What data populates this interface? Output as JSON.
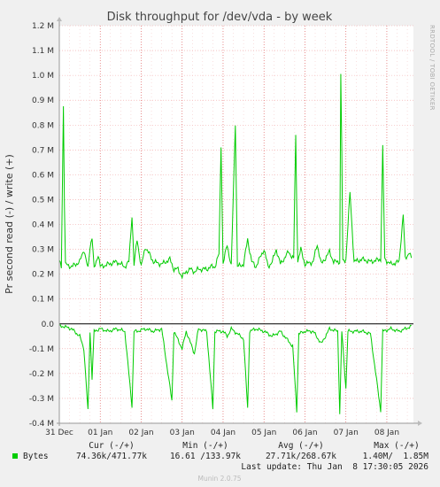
{
  "chart_data": {
    "type": "line",
    "title": "Disk throughput for /dev/vda - by week",
    "ylabel": "Pr second read (-) / write (+)",
    "side_label": "RRDTOOL / TOBI OETIKER",
    "ylim": [
      -0.4,
      1.2
    ],
    "y_unit": "M",
    "y_ticks": [
      "1.2 M",
      "1.1 M",
      "1.0 M",
      "0.9 M",
      "0.8 M",
      "0.7 M",
      "0.6 M",
      "0.5 M",
      "0.4 M",
      "0.3 M",
      "0.2 M",
      "0.1 M",
      "0.0",
      "-0.1 M",
      "-0.2 M",
      "-0.3 M",
      "-0.4 M"
    ],
    "x_ticks": [
      "31 Dec",
      "01 Jan",
      "02 Jan",
      "03 Jan",
      "04 Jan",
      "05 Jan",
      "06 Jan",
      "07 Jan",
      "08 Jan"
    ],
    "x_range_days": [
      0,
      8.65
    ],
    "grid": true,
    "series": [
      {
        "name": "Bytes",
        "color": "#00cc00",
        "write_points": [
          [
            0.0,
            0.25
          ],
          [
            0.05,
            0.23
          ],
          [
            0.1,
            0.88
          ],
          [
            0.14,
            0.24
          ],
          [
            0.3,
            0.23
          ],
          [
            0.5,
            0.25
          ],
          [
            0.6,
            0.3
          ],
          [
            0.7,
            0.22
          ],
          [
            0.75,
            0.31
          ],
          [
            0.8,
            0.35
          ],
          [
            0.85,
            0.22
          ],
          [
            0.95,
            0.28
          ],
          [
            1.0,
            0.23
          ],
          [
            1.2,
            0.24
          ],
          [
            1.4,
            0.25
          ],
          [
            1.6,
            0.23
          ],
          [
            1.7,
            0.25
          ],
          [
            1.78,
            0.45
          ],
          [
            1.82,
            0.23
          ],
          [
            1.9,
            0.34
          ],
          [
            2.0,
            0.23
          ],
          [
            2.1,
            0.31
          ],
          [
            2.3,
            0.25
          ],
          [
            2.5,
            0.24
          ],
          [
            2.7,
            0.26
          ],
          [
            2.8,
            0.22
          ],
          [
            2.9,
            0.22
          ],
          [
            3.0,
            0.19
          ],
          [
            3.1,
            0.21
          ],
          [
            3.2,
            0.22
          ],
          [
            3.3,
            0.21
          ],
          [
            3.4,
            0.22
          ],
          [
            3.5,
            0.22
          ],
          [
            3.6,
            0.22
          ],
          [
            3.7,
            0.23
          ],
          [
            3.8,
            0.23
          ],
          [
            3.9,
            0.28
          ],
          [
            3.95,
            0.72
          ],
          [
            4.0,
            0.24
          ],
          [
            4.1,
            0.32
          ],
          [
            4.2,
            0.23
          ],
          [
            4.3,
            0.81
          ],
          [
            4.35,
            0.23
          ],
          [
            4.5,
            0.24
          ],
          [
            4.6,
            0.34
          ],
          [
            4.7,
            0.25
          ],
          [
            4.8,
            0.23
          ],
          [
            5.0,
            0.3
          ],
          [
            5.1,
            0.23
          ],
          [
            5.2,
            0.25
          ],
          [
            5.3,
            0.3
          ],
          [
            5.4,
            0.24
          ],
          [
            5.6,
            0.29
          ],
          [
            5.73,
            0.26
          ],
          [
            5.77,
            0.81
          ],
          [
            5.82,
            0.25
          ],
          [
            5.9,
            0.3
          ],
          [
            6.0,
            0.24
          ],
          [
            6.2,
            0.25
          ],
          [
            6.3,
            0.32
          ],
          [
            6.4,
            0.24
          ],
          [
            6.6,
            0.29
          ],
          [
            6.7,
            0.25
          ],
          [
            6.85,
            0.25
          ],
          [
            6.88,
            1.15
          ],
          [
            6.92,
            0.25
          ],
          [
            7.0,
            0.26
          ],
          [
            7.1,
            0.53
          ],
          [
            7.2,
            0.25
          ],
          [
            7.4,
            0.26
          ],
          [
            7.6,
            0.25
          ],
          [
            7.85,
            0.26
          ],
          [
            7.9,
            0.71
          ],
          [
            7.95,
            0.26
          ],
          [
            8.1,
            0.24
          ],
          [
            8.3,
            0.25
          ],
          [
            8.4,
            0.44
          ],
          [
            8.45,
            0.26
          ],
          [
            8.55,
            0.29
          ],
          [
            8.6,
            0.26
          ]
        ],
        "read_points": [
          [
            0.0,
            -0.01
          ],
          [
            0.1,
            -0.01
          ],
          [
            0.3,
            -0.02
          ],
          [
            0.5,
            -0.05
          ],
          [
            0.6,
            -0.1
          ],
          [
            0.7,
            -0.35
          ],
          [
            0.75,
            -0.03
          ],
          [
            0.8,
            -0.22
          ],
          [
            0.85,
            -0.03
          ],
          [
            1.0,
            -0.02
          ],
          [
            1.2,
            -0.03
          ],
          [
            1.4,
            -0.02
          ],
          [
            1.6,
            -0.03
          ],
          [
            1.78,
            -0.34
          ],
          [
            1.82,
            -0.03
          ],
          [
            1.9,
            -0.03
          ],
          [
            2.1,
            -0.02
          ],
          [
            2.3,
            -0.03
          ],
          [
            2.5,
            -0.02
          ],
          [
            2.75,
            -0.31
          ],
          [
            2.8,
            -0.03
          ],
          [
            3.0,
            -0.1
          ],
          [
            3.1,
            -0.03
          ],
          [
            3.3,
            -0.12
          ],
          [
            3.4,
            -0.02
          ],
          [
            3.6,
            -0.03
          ],
          [
            3.75,
            -0.34
          ],
          [
            3.8,
            -0.03
          ],
          [
            4.0,
            -0.03
          ],
          [
            4.1,
            -0.05
          ],
          [
            4.2,
            -0.02
          ],
          [
            4.5,
            -0.06
          ],
          [
            4.6,
            -0.34
          ],
          [
            4.65,
            -0.03
          ],
          [
            4.8,
            -0.02
          ],
          [
            5.0,
            -0.03
          ],
          [
            5.2,
            -0.05
          ],
          [
            5.4,
            -0.03
          ],
          [
            5.7,
            -0.09
          ],
          [
            5.8,
            -0.35
          ],
          [
            5.85,
            -0.04
          ],
          [
            6.0,
            -0.03
          ],
          [
            6.2,
            -0.03
          ],
          [
            6.4,
            -0.08
          ],
          [
            6.6,
            -0.02
          ],
          [
            6.8,
            -0.03
          ],
          [
            6.85,
            -0.36
          ],
          [
            6.9,
            -0.03
          ],
          [
            7.0,
            -0.26
          ],
          [
            7.05,
            -0.03
          ],
          [
            7.2,
            -0.03
          ],
          [
            7.4,
            -0.03
          ],
          [
            7.6,
            -0.04
          ],
          [
            7.85,
            -0.35
          ],
          [
            7.9,
            -0.03
          ],
          [
            8.1,
            -0.02
          ],
          [
            8.3,
            -0.03
          ],
          [
            8.6,
            -0.01
          ]
        ]
      }
    ]
  },
  "legend": {
    "headers": [
      "Cur (-/+)",
      "Min (-/+)",
      "Avg (-/+)",
      "Max (-/+)"
    ],
    "rows": [
      {
        "name": "Bytes",
        "color": "#00cc00",
        "cur": "74.36k/471.77k",
        "min": "16.61 /133.97k",
        "avg": "27.71k/268.67k",
        "max": "1.40M/  1.85M"
      }
    ],
    "last_update": "Last update: Thu Jan  8 17:30:05 2026"
  },
  "footer": "Munin 2.0.75"
}
